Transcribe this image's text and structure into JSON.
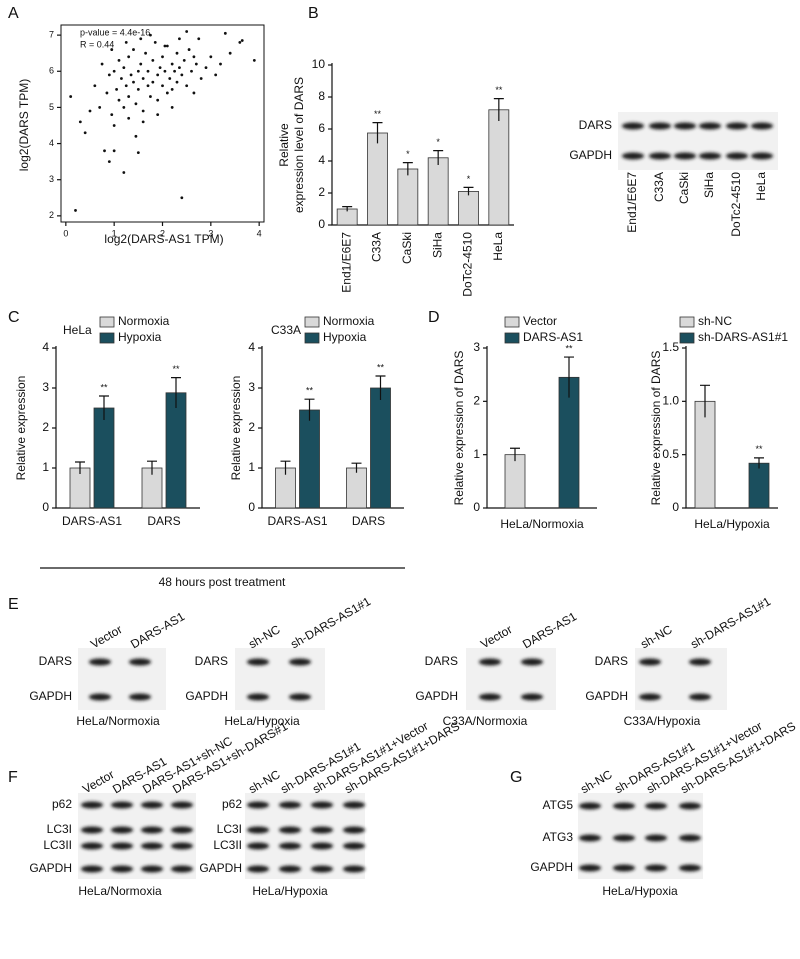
{
  "panel_labels": [
    "A",
    "B",
    "C",
    "D",
    "E",
    "F",
    "G"
  ],
  "chart_data": [
    {
      "type": "scatter",
      "xlabel": "log2(DARS-AS1 TPM)",
      "ylabel": "log2(DARS TPM)",
      "annotations": [
        "p-value = 4.4e-16",
        "R = 0.44"
      ],
      "color": "#111111",
      "xlim": [
        -0.1,
        4.1
      ],
      "xticks": [
        0,
        1,
        2,
        3,
        4
      ],
      "ylim": [
        1.83,
        7.28
      ],
      "yticks": [
        2,
        3,
        4,
        5,
        6,
        7
      ],
      "x": [
        0.1,
        0.2,
        0.3,
        0.4,
        0.5,
        0.8,
        0.9,
        1.0,
        1.2,
        1.5,
        2.4,
        3.65,
        3.6,
        3.9,
        3.3,
        2.5,
        0.6,
        0.7,
        0.75,
        0.85,
        0.9,
        0.95,
        1.0,
        1.05,
        1.1,
        1.1,
        1.15,
        1.2,
        1.2,
        1.25,
        1.3,
        1.3,
        1.35,
        1.4,
        1.4,
        1.45,
        1.5,
        1.5,
        1.55,
        1.6,
        1.6,
        1.65,
        1.7,
        1.7,
        1.75,
        1.8,
        1.8,
        1.85,
        1.9,
        1.9,
        1.95,
        2.0,
        2.0,
        2.05,
        2.1,
        2.1,
        2.15,
        2.2,
        2.2,
        2.25,
        2.3,
        2.3,
        2.35,
        2.4,
        2.45,
        2.5,
        2.55,
        2.6,
        2.65,
        2.7,
        2.75,
        2.8,
        2.9,
        3.0,
        3.1,
        3.2,
        3.4,
        1.0,
        1.3,
        1.6,
        1.9,
        2.2,
        0.95,
        1.25,
        1.55,
        1.75,
        2.05,
        2.35,
        2.65,
        1.45
      ],
      "values": [
        5.3,
        2.15,
        4.6,
        4.3,
        4.9,
        3.8,
        3.5,
        3.8,
        3.2,
        3.75,
        2.5,
        6.85,
        6.8,
        6.3,
        7.05,
        7.1,
        5.6,
        5.0,
        6.2,
        5.4,
        5.9,
        4.8,
        6.0,
        5.5,
        5.2,
        6.3,
        5.8,
        5.0,
        6.1,
        5.6,
        6.4,
        5.3,
        5.9,
        5.7,
        6.6,
        5.1,
        6.0,
        5.5,
        6.2,
        5.8,
        4.9,
        6.5,
        5.6,
        6.0,
        5.3,
        6.3,
        5.7,
        6.8,
        5.9,
        5.2,
        6.1,
        5.6,
        6.4,
        6.0,
        5.4,
        6.7,
        5.8,
        6.2,
        5.5,
        6.0,
        6.5,
        5.7,
        6.1,
        5.9,
        6.3,
        5.6,
        6.6,
        6.0,
        5.4,
        6.2,
        6.9,
        5.8,
        6.1,
        6.4,
        5.9,
        6.2,
        6.5,
        4.5,
        4.7,
        4.6,
        4.8,
        5.0,
        6.6,
        6.8,
        6.9,
        7.0,
        6.7,
        6.9,
        6.4,
        4.2
      ]
    },
    {
      "type": "bar",
      "ylabel": [
        "Relative",
        "expression level of DARS"
      ],
      "categories": [
        "End1/E6E7",
        "C33A",
        "CaSki",
        "SiHa",
        "DoTc2-4510",
        "HeLa"
      ],
      "values": [
        1,
        5.75,
        3.5,
        4.2,
        2.1,
        7.2
      ],
      "errors": [
        0.15,
        0.65,
        0.4,
        0.45,
        0.25,
        0.7
      ],
      "annotations": [
        null,
        "**",
        "*",
        "*",
        "*",
        "**"
      ],
      "color": "#d9d9d9",
      "ylim": [
        0,
        10
      ],
      "yticks": [
        0,
        2,
        4,
        6,
        8,
        10
      ]
    },
    {
      "type": "bar",
      "title": "HeLa",
      "ylabel": "Relative expression",
      "categories": [
        "DARS-AS1",
        "DARS"
      ],
      "series": [
        {
          "name": "Normoxia",
          "color": "#d9d9d9",
          "values": [
            1,
            1
          ],
          "errors": [
            0.15,
            0.17
          ],
          "annotations": [
            null,
            null
          ]
        },
        {
          "name": "Hypoxia",
          "color": "#1b4f5e",
          "values": [
            2.5,
            2.88
          ],
          "errors": [
            0.3,
            0.38
          ],
          "annotations": [
            "**",
            "**"
          ]
        }
      ],
      "ylim": [
        0,
        4
      ],
      "yticks": [
        0,
        1,
        2,
        3,
        4
      ]
    },
    {
      "type": "bar",
      "title": "C33A",
      "ylabel": "Relative expression",
      "categories": [
        "DARS-AS1",
        "DARS"
      ],
      "series": [
        {
          "name": "Normoxia",
          "color": "#d9d9d9",
          "values": [
            1,
            1
          ],
          "errors": [
            0.17,
            0.12
          ],
          "annotations": [
            null,
            null
          ]
        },
        {
          "name": "Hypoxia",
          "color": "#1b4f5e",
          "values": [
            2.45,
            3.0
          ],
          "errors": [
            0.27,
            0.3
          ],
          "annotations": [
            "**",
            "**"
          ]
        }
      ],
      "ylim": [
        0,
        4
      ],
      "yticks": [
        0,
        1,
        2,
        3,
        4
      ]
    },
    {
      "type": "bar",
      "ylabel": "Relative expression of DARS",
      "categories": [
        "HeLa/Normoxia"
      ],
      "series": [
        {
          "name": "Vector",
          "color": "#d9d9d9",
          "values": [
            1
          ],
          "errors": [
            0.12
          ],
          "annotations": [
            null
          ]
        },
        {
          "name": "DARS-AS1",
          "color": "#1b4f5e",
          "values": [
            2.45
          ],
          "errors": [
            0.38
          ],
          "annotations": [
            "**"
          ]
        }
      ],
      "ylim": [
        0,
        3
      ],
      "yticks": [
        0,
        1,
        2,
        3
      ]
    },
    {
      "type": "bar",
      "ylabel": "Relative expression of DARS",
      "categories": [
        "HeLa/Hypoxia"
      ],
      "series": [
        {
          "name": "sh-NC",
          "color": "#d9d9d9",
          "values": [
            1.0
          ],
          "errors": [
            0.15
          ],
          "annotations": [
            null
          ]
        },
        {
          "name": "sh-DARS-AS1#1",
          "color": "#1b4f5e",
          "values": [
            0.42
          ],
          "errors": [
            0.05
          ],
          "annotations": [
            "**"
          ]
        }
      ],
      "ylim": [
        0,
        1.5
      ],
      "yticks": [
        0,
        0.5,
        {
          "value": 1,
          "label": "1.0"
        },
        1.5
      ]
    }
  ],
  "c_footnote": "48 hours post treatment",
  "blots": [
    {
      "rows": [
        "DARS",
        "GAPDH"
      ],
      "lanes": [
        "End1/E6E7",
        "C33A",
        "CaSki",
        "SiHa",
        "DoTc2-4510",
        "HeLa"
      ]
    },
    {
      "rows": [
        "DARS",
        "GAPDH"
      ],
      "lanes": [
        "Vector",
        "DARS-AS1"
      ],
      "caption": "HeLa/Normoxia"
    },
    {
      "rows": [
        "DARS",
        "GAPDH"
      ],
      "lanes": [
        "sh-NC",
        "sh-DARS-AS1#1"
      ],
      "caption": "HeLa/Hypoxia"
    },
    {
      "rows": [
        "DARS",
        "GAPDH"
      ],
      "lanes": [
        "Vector",
        "DARS-AS1"
      ],
      "caption": "C33A/Normoxia"
    },
    {
      "rows": [
        "DARS",
        "GAPDH"
      ],
      "lanes": [
        "sh-NC",
        "sh-DARS-AS1#1"
      ],
      "caption": "C33A/Hypoxia"
    },
    {
      "rows": [
        "p62",
        "LC3I",
        "LC3II",
        "GAPDH"
      ],
      "lanes": [
        "Vector",
        "DARS-AS1",
        "DARS-AS1+sh-NC",
        "DARS-AS1+sh-DARS#1"
      ],
      "caption": "HeLa/Normoxia"
    },
    {
      "rows": [
        "p62",
        "LC3I",
        "LC3II",
        "GAPDH"
      ],
      "lanes": [
        "sh-NC",
        "sh-DARS-AS1#1",
        "sh-DARS-AS1#1+Vector",
        "sh-DARS-AS1#1+DARS"
      ],
      "caption": "HeLa/Hypoxia"
    },
    {
      "rows": [
        "ATG5",
        "ATG3",
        "GAPDH"
      ],
      "lanes": [
        "sh-NC",
        "sh-DARS-AS1#1",
        "sh-DARS-AS1#1+Vector",
        "sh-DARS-AS1#1+DARS"
      ],
      "caption": "HeLa/Hypoxia"
    }
  ]
}
